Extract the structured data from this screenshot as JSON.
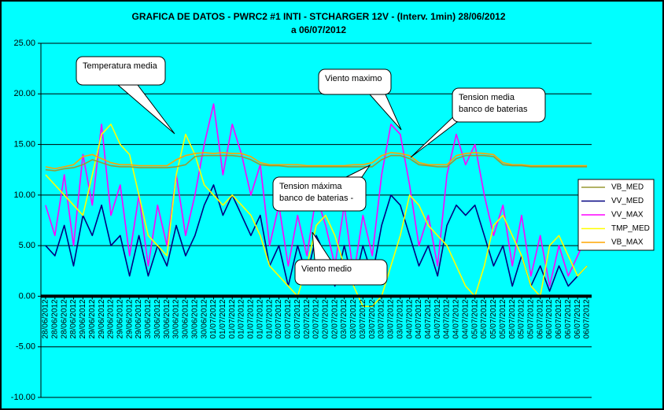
{
  "chart_data": {
    "type": "line",
    "title": [
      "GRAFICA DE DATOS - PWRC2 #1 INTI - STCHARGER 12V - (Interv. 1min)  28/06/2012",
      "a 06/07/2012"
    ],
    "categories": [
      "28/06/2012",
      "28/06/2012",
      "28/06/2012",
      "28/06/2012",
      "29/06/2012",
      "29/06/2012",
      "29/06/2012",
      "29/06/2012",
      "29/06/2012",
      "29/06/2012",
      "29/06/2012",
      "30/06/2012",
      "30/06/2012",
      "30/06/2012",
      "30/06/2012",
      "30/06/2012",
      "30/06/2012",
      "30/06/2012",
      "01/07/2012",
      "01/07/2012",
      "01/07/2012",
      "01/07/2012",
      "01/07/2012",
      "01/07/2012",
      "01/07/2012",
      "02/07/2012",
      "02/07/2012",
      "02/07/2012",
      "02/07/2012",
      "02/07/2012",
      "02/07/2012",
      "02/07/2012",
      "03/07/2012",
      "03/07/2012",
      "03/07/2012",
      "03/07/2012",
      "03/07/2012",
      "03/07/2012",
      "03/07/2012",
      "04/07/2012",
      "04/07/2012",
      "04/07/2012",
      "04/07/2012",
      "04/07/2012",
      "04/07/2012",
      "04/07/2012",
      "05/07/2012",
      "05/07/2012",
      "05/07/2012",
      "05/07/2012",
      "05/07/2012",
      "05/07/2012",
      "05/07/2012",
      "06/07/2012",
      "06/07/2012",
      "06/07/2012",
      "06/07/2012",
      "06/07/2012",
      "06/07/2012"
    ],
    "series": [
      {
        "name": "VB_MED",
        "color": "#999933",
        "values": [
          12.5,
          12.4,
          12.6,
          12.7,
          13.0,
          13.5,
          13.2,
          12.9,
          12.8,
          12.8,
          12.7,
          12.7,
          12.7,
          12.7,
          12.8,
          13.0,
          13.8,
          13.9,
          13.9,
          13.9,
          13.9,
          13.8,
          13.5,
          13.0,
          12.9,
          12.9,
          12.8,
          12.8,
          12.8,
          12.8,
          12.8,
          12.8,
          12.8,
          12.8,
          12.8,
          12.8,
          13.5,
          13.9,
          13.9,
          13.6,
          13.0,
          12.9,
          12.8,
          12.8,
          13.6,
          13.9,
          13.9,
          13.9,
          13.8,
          13.0,
          12.9,
          12.9,
          12.8,
          12.8,
          12.8,
          12.8,
          12.8,
          12.8,
          12.8
        ]
      },
      {
        "name": "VV_MED",
        "color": "#000080",
        "values": [
          5,
          4,
          7,
          3,
          8,
          6,
          9,
          5,
          6,
          2,
          6,
          2,
          5,
          3,
          7,
          4,
          6,
          9,
          11,
          8,
          10,
          8,
          6,
          8,
          3,
          5,
          1,
          5,
          2,
          6,
          4,
          1,
          5,
          1,
          5,
          2,
          7,
          10,
          9,
          6,
          3,
          5,
          2,
          7,
          9,
          8,
          9,
          6,
          3,
          5,
          1,
          4,
          1,
          3,
          0.5,
          3,
          1,
          2,
          3
        ]
      },
      {
        "name": "VV_MAX",
        "color": "#FF00FF",
        "values": [
          9,
          6,
          12,
          5,
          14,
          9,
          17,
          8,
          11,
          4,
          10,
          3,
          9,
          5,
          12,
          6,
          10,
          15,
          19,
          12,
          17,
          14,
          10,
          13,
          5,
          9,
          3,
          8,
          4,
          10,
          7,
          3,
          9,
          2,
          8,
          4,
          12,
          17,
          16,
          11,
          5,
          8,
          3,
          12,
          16,
          13,
          15,
          10,
          6,
          9,
          3,
          8,
          2,
          6,
          1,
          5,
          2,
          4,
          6
        ]
      },
      {
        "name": "TMP_MED",
        "color": "#FFFF00",
        "values": [
          12,
          11,
          10,
          9,
          8,
          12,
          16,
          17,
          15,
          14,
          10,
          6,
          5,
          4,
          12,
          16,
          14,
          11,
          10,
          9,
          10,
          9,
          8,
          6,
          3,
          2,
          1,
          0,
          3,
          7,
          8,
          6,
          3,
          1,
          -1,
          -1,
          0,
          3,
          6,
          10,
          9,
          7,
          6,
          5,
          3,
          1,
          0,
          3,
          7,
          8,
          6,
          4,
          1,
          0,
          5,
          6,
          4,
          2,
          3
        ]
      },
      {
        "name": "VB_MAX",
        "color": "#FFA500",
        "values": [
          12.8,
          12.6,
          12.8,
          13.0,
          13.8,
          14.0,
          13.6,
          13.2,
          13.0,
          13.0,
          12.9,
          12.9,
          12.9,
          12.9,
          13.5,
          13.9,
          14.1,
          14.2,
          14.1,
          14.2,
          14.1,
          14.1,
          13.8,
          13.2,
          13.0,
          13.0,
          13.0,
          13.0,
          12.9,
          12.9,
          12.9,
          12.9,
          12.9,
          13.0,
          13.0,
          13.2,
          13.9,
          14.2,
          14.1,
          13.9,
          13.2,
          13.0,
          13.0,
          13.0,
          13.9,
          14.1,
          14.2,
          14.1,
          14.0,
          13.2,
          13.0,
          13.0,
          12.9,
          12.9,
          12.9,
          12.9,
          12.9,
          12.9,
          12.9
        ]
      }
    ],
    "ylim": [
      -10,
      25
    ],
    "yticks": [
      {
        "value": -10,
        "label": "-10.00"
      },
      {
        "value": -5,
        "label": "-5.00"
      },
      {
        "value": 0,
        "label": "0.00"
      },
      {
        "value": 5,
        "label": "5.00"
      },
      {
        "value": 10,
        "label": "10.00"
      },
      {
        "value": 15,
        "label": "15.00"
      },
      {
        "value": 20,
        "label": "20.00"
      },
      {
        "value": 25,
        "label": "25.00"
      }
    ],
    "grid": true,
    "legend": "right",
    "annotations": [
      {
        "text": [
          "Temperatura media"
        ]
      },
      {
        "text": [
          "Viento maximo"
        ]
      },
      {
        "text": [
          "Tension media",
          "banco de baterias"
        ]
      },
      {
        "text": [
          "Tension máxima",
          "banco de baterias -"
        ]
      },
      {
        "text": [
          "Viento medio"
        ]
      }
    ]
  }
}
